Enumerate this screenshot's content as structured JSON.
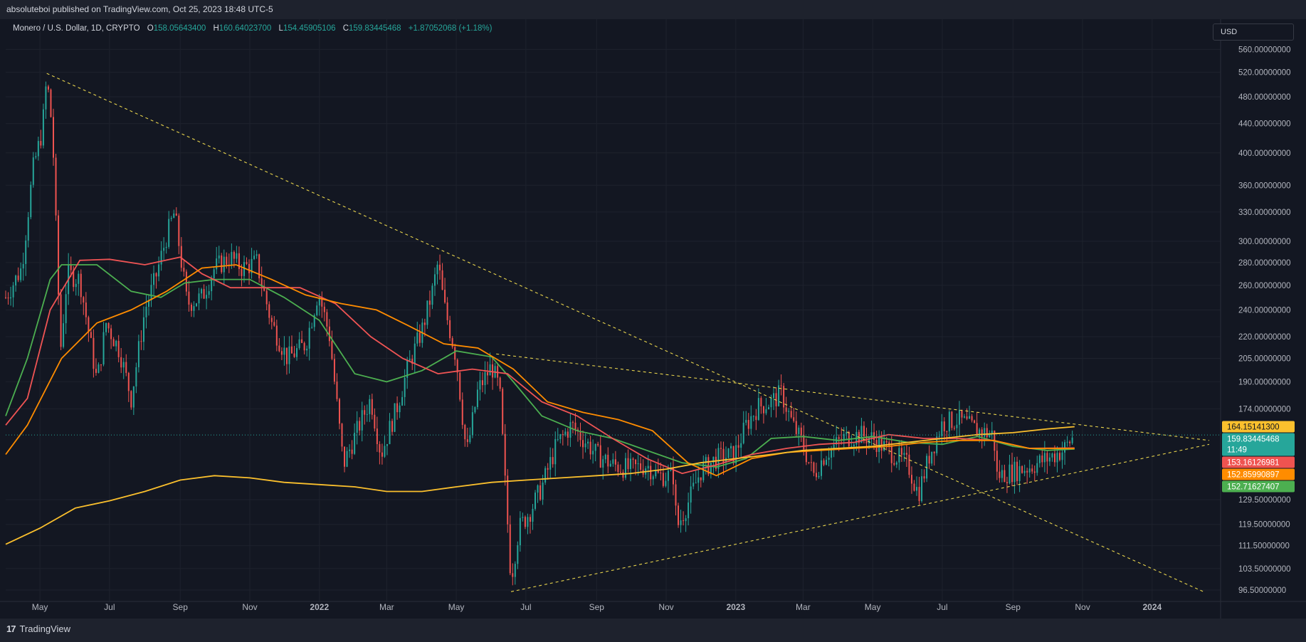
{
  "header": {
    "published": "absoluteboi published on TradingView.com, Oct 25, 2023 18:48 UTC-5"
  },
  "legend": {
    "symbol": "Monero / U.S. Dollar, 1D, CRYPTO",
    "open_label": "O",
    "open": "158.05643400",
    "high_label": "H",
    "high": "160.64023700",
    "low_label": "L",
    "low": "154.45905106",
    "close_label": "C",
    "close": "159.83445468",
    "change": "+1.87052068 (+1.18%)"
  },
  "currency_button": "USD",
  "footer": {
    "brand": "TradingView",
    "logo": "17"
  },
  "colors": {
    "background": "#131722",
    "grid": "#1e222d",
    "up": "#26a69a",
    "down": "#ef5350",
    "ma_green": "#4caf50",
    "ma_red": "#f05454",
    "ma_orange": "#ff8c00",
    "ma_yellow": "#fbc02d",
    "trendline": "#e8d44d"
  },
  "price_tags": [
    {
      "label": "164.15141300",
      "value": 164.15,
      "bg": "#fbc02d",
      "fg": "#131722"
    },
    {
      "label": "159.83445468",
      "sub": "11:49",
      "value": 159.83,
      "bg": "#26a69a",
      "fg": "#ffffff"
    },
    {
      "label": "153.16126981",
      "value": 153.16,
      "bg": "#ef5350",
      "fg": "#ffffff"
    },
    {
      "label": "152.85990897",
      "value": 152.86,
      "bg": "#ff8c00",
      "fg": "#ffffff"
    },
    {
      "label": "152.71627407",
      "value": 152.72,
      "bg": "#4caf50",
      "fg": "#ffffff"
    }
  ],
  "chart_data": {
    "type": "candlestick",
    "title": "Monero / U.S. Dollar, 1D, CRYPTO",
    "y_scale": "log",
    "ylim": [
      93,
      575
    ],
    "xlim": [
      "2021-04-01",
      "2024-03-01"
    ],
    "y_ticks": [
      {
        "value": 560,
        "label": "560.00000000"
      },
      {
        "value": 520,
        "label": "520.00000000"
      },
      {
        "value": 480,
        "label": "480.00000000"
      },
      {
        "value": 440,
        "label": "440.00000000"
      },
      {
        "value": 400,
        "label": "400.00000000"
      },
      {
        "value": 360,
        "label": "360.00000000"
      },
      {
        "value": 330,
        "label": "330.00000000"
      },
      {
        "value": 300,
        "label": "300.00000000"
      },
      {
        "value": 280,
        "label": "280.00000000"
      },
      {
        "value": 260,
        "label": "260.00000000"
      },
      {
        "value": 240,
        "label": "240.00000000"
      },
      {
        "value": 220,
        "label": "220.00000000"
      },
      {
        "value": 205,
        "label": "205.00000000"
      },
      {
        "value": 190,
        "label": "190.00000000"
      },
      {
        "value": 174,
        "label": "174.00000000"
      },
      {
        "value": 129.5,
        "label": "129.50000000"
      },
      {
        "value": 119.5,
        "label": "119.50000000"
      },
      {
        "value": 111.5,
        "label": "111.50000000"
      },
      {
        "value": 103.5,
        "label": "103.50000000"
      },
      {
        "value": 96.5,
        "label": "96.50000000"
      }
    ],
    "x_ticks": [
      {
        "date": "2021-05-01",
        "label": "May",
        "bold": false
      },
      {
        "date": "2021-07-01",
        "label": "Jul",
        "bold": false
      },
      {
        "date": "2021-09-01",
        "label": "Sep",
        "bold": false
      },
      {
        "date": "2021-11-01",
        "label": "Nov",
        "bold": false
      },
      {
        "date": "2022-01-01",
        "label": "2022",
        "bold": true
      },
      {
        "date": "2022-03-01",
        "label": "Mar",
        "bold": false
      },
      {
        "date": "2022-05-01",
        "label": "May",
        "bold": false
      },
      {
        "date": "2022-07-01",
        "label": "Jul",
        "bold": false
      },
      {
        "date": "2022-09-01",
        "label": "Sep",
        "bold": false
      },
      {
        "date": "2022-11-01",
        "label": "Nov",
        "bold": false
      },
      {
        "date": "2023-01-01",
        "label": "2023",
        "bold": true
      },
      {
        "date": "2023-03-01",
        "label": "Mar",
        "bold": false
      },
      {
        "date": "2023-05-01",
        "label": "May",
        "bold": false
      },
      {
        "date": "2023-07-01",
        "label": "Jul",
        "bold": false
      },
      {
        "date": "2023-09-01",
        "label": "Sep",
        "bold": false
      },
      {
        "date": "2023-11-01",
        "label": "Nov",
        "bold": false
      },
      {
        "date": "2024-01-01",
        "label": "2024",
        "bold": true
      }
    ],
    "price_path": [
      [
        "2021-04-01",
        250
      ],
      [
        "2021-04-15",
        275
      ],
      [
        "2021-04-25",
        380
      ],
      [
        "2021-05-03",
        430
      ],
      [
        "2021-05-07",
        510
      ],
      [
        "2021-05-12",
        430
      ],
      [
        "2021-05-19",
        210
      ],
      [
        "2021-05-25",
        270
      ],
      [
        "2021-06-05",
        265
      ],
      [
        "2021-06-20",
        190
      ],
      [
        "2021-06-28",
        230
      ],
      [
        "2021-07-10",
        210
      ],
      [
        "2021-07-20",
        180
      ],
      [
        "2021-08-01",
        240
      ],
      [
        "2021-08-10",
        265
      ],
      [
        "2021-08-20",
        305
      ],
      [
        "2021-08-27",
        330
      ],
      [
        "2021-09-07",
        245
      ],
      [
        "2021-09-20",
        250
      ],
      [
        "2021-10-01",
        275
      ],
      [
        "2021-10-15",
        285
      ],
      [
        "2021-10-25",
        275
      ],
      [
        "2021-11-07",
        280
      ],
      [
        "2021-11-20",
        230
      ],
      [
        "2021-12-04",
        205
      ],
      [
        "2021-12-20",
        215
      ],
      [
        "2021-12-31",
        255
      ],
      [
        "2022-01-10",
        220
      ],
      [
        "2022-01-22",
        145
      ],
      [
        "2022-02-05",
        165
      ],
      [
        "2022-02-15",
        180
      ],
      [
        "2022-02-24",
        150
      ],
      [
        "2022-03-10",
        175
      ],
      [
        "2022-03-20",
        200
      ],
      [
        "2022-04-01",
        225
      ],
      [
        "2022-04-10",
        255
      ],
      [
        "2022-04-15",
        280
      ],
      [
        "2022-04-20",
        245
      ],
      [
        "2022-05-01",
        205
      ],
      [
        "2022-05-10",
        150
      ],
      [
        "2022-05-20",
        185
      ],
      [
        "2022-06-01",
        200
      ],
      [
        "2022-06-08",
        185
      ],
      [
        "2022-06-13",
        135
      ],
      [
        "2022-06-18",
        100
      ],
      [
        "2022-06-25",
        118
      ],
      [
        "2022-07-05",
        125
      ],
      [
        "2022-07-15",
        135
      ],
      [
        "2022-07-28",
        155
      ],
      [
        "2022-08-10",
        165
      ],
      [
        "2022-08-20",
        158
      ],
      [
        "2022-09-01",
        150
      ],
      [
        "2022-09-15",
        145
      ],
      [
        "2022-10-01",
        143
      ],
      [
        "2022-10-15",
        145
      ],
      [
        "2022-10-25",
        140
      ],
      [
        "2022-11-08",
        140
      ],
      [
        "2022-11-10",
        118
      ],
      [
        "2022-11-20",
        128
      ],
      [
        "2022-12-01",
        142
      ],
      [
        "2022-12-15",
        148
      ],
      [
        "2022-12-31",
        150
      ],
      [
        "2023-01-10",
        165
      ],
      [
        "2023-01-20",
        175
      ],
      [
        "2023-02-01",
        178
      ],
      [
        "2023-02-10",
        183
      ],
      [
        "2023-02-20",
        165
      ],
      [
        "2023-03-01",
        155
      ],
      [
        "2023-03-10",
        140
      ],
      [
        "2023-03-20",
        150
      ],
      [
        "2023-04-05",
        158
      ],
      [
        "2023-04-20",
        160
      ],
      [
        "2023-05-01",
        158
      ],
      [
        "2023-05-15",
        152
      ],
      [
        "2023-06-01",
        145
      ],
      [
        "2023-06-10",
        132
      ],
      [
        "2023-06-20",
        150
      ],
      [
        "2023-07-01",
        166
      ],
      [
        "2023-07-15",
        168
      ],
      [
        "2023-08-01",
        162
      ],
      [
        "2023-08-15",
        160
      ],
      [
        "2023-08-18",
        140
      ],
      [
        "2023-09-01",
        142
      ],
      [
        "2023-09-15",
        144
      ],
      [
        "2023-10-01",
        148
      ],
      [
        "2023-10-15",
        152
      ],
      [
        "2023-10-25",
        159.8
      ]
    ],
    "moving_averages": [
      {
        "color": "#4caf50",
        "points": [
          [
            "2021-04-01",
            170
          ],
          [
            "2021-04-20",
            205
          ],
          [
            "2021-05-10",
            265
          ],
          [
            "2021-05-20",
            278
          ],
          [
            "2021-06-20",
            278
          ],
          [
            "2021-07-20",
            255
          ],
          [
            "2021-08-15",
            250
          ],
          [
            "2021-09-05",
            262
          ],
          [
            "2021-10-01",
            265
          ],
          [
            "2021-11-01",
            265
          ],
          [
            "2021-12-01",
            250
          ],
          [
            "2022-01-01",
            232
          ],
          [
            "2022-02-01",
            195
          ],
          [
            "2022-03-01",
            190
          ],
          [
            "2022-04-01",
            197
          ],
          [
            "2022-05-01",
            210
          ],
          [
            "2022-06-01",
            206
          ],
          [
            "2022-06-20",
            190
          ],
          [
            "2022-07-15",
            170
          ],
          [
            "2022-08-15",
            162
          ],
          [
            "2022-09-15",
            158
          ],
          [
            "2022-10-15",
            152
          ],
          [
            "2022-11-15",
            146
          ],
          [
            "2022-12-15",
            144
          ],
          [
            "2023-01-10",
            148
          ],
          [
            "2023-02-01",
            158
          ],
          [
            "2023-03-01",
            159
          ],
          [
            "2023-04-01",
            157
          ],
          [
            "2023-05-01",
            159
          ],
          [
            "2023-06-01",
            156
          ],
          [
            "2023-07-01",
            155
          ],
          [
            "2023-08-01",
            159
          ],
          [
            "2023-09-01",
            154
          ],
          [
            "2023-10-01",
            152
          ],
          [
            "2023-10-25",
            152.7
          ]
        ]
      },
      {
        "color": "#f05454",
        "points": [
          [
            "2021-04-01",
            165
          ],
          [
            "2021-04-20",
            180
          ],
          [
            "2021-05-10",
            240
          ],
          [
            "2021-06-05",
            282
          ],
          [
            "2021-07-01",
            283
          ],
          [
            "2021-08-01",
            278
          ],
          [
            "2021-09-01",
            285
          ],
          [
            "2021-09-20",
            270
          ],
          [
            "2021-10-15",
            258
          ],
          [
            "2021-11-15",
            258
          ],
          [
            "2021-12-15",
            258
          ],
          [
            "2022-01-15",
            245
          ],
          [
            "2022-02-15",
            220
          ],
          [
            "2022-03-15",
            205
          ],
          [
            "2022-04-15",
            195
          ],
          [
            "2022-05-15",
            198
          ],
          [
            "2022-06-15",
            195
          ],
          [
            "2022-07-15",
            178
          ],
          [
            "2022-08-15",
            170
          ],
          [
            "2022-09-15",
            158
          ],
          [
            "2022-10-15",
            148
          ],
          [
            "2022-11-15",
            141
          ],
          [
            "2022-12-15",
            145
          ],
          [
            "2023-01-15",
            150
          ],
          [
            "2023-02-15",
            153
          ],
          [
            "2023-03-15",
            155
          ],
          [
            "2023-04-15",
            156
          ],
          [
            "2023-05-15",
            160
          ],
          [
            "2023-06-15",
            158
          ],
          [
            "2023-07-15",
            158
          ],
          [
            "2023-08-15",
            157
          ],
          [
            "2023-09-15",
            153
          ],
          [
            "2023-10-25",
            153.2
          ]
        ]
      },
      {
        "color": "#ff8c00",
        "points": [
          [
            "2021-04-01",
            150
          ],
          [
            "2021-04-20",
            165
          ],
          [
            "2021-05-20",
            205
          ],
          [
            "2021-06-20",
            230
          ],
          [
            "2021-07-20",
            240
          ],
          [
            "2021-08-20",
            255
          ],
          [
            "2021-09-20",
            275
          ],
          [
            "2021-10-20",
            278
          ],
          [
            "2021-11-20",
            265
          ],
          [
            "2021-12-20",
            252
          ],
          [
            "2022-01-20",
            245
          ],
          [
            "2022-02-20",
            240
          ],
          [
            "2022-03-20",
            228
          ],
          [
            "2022-04-20",
            215
          ],
          [
            "2022-05-20",
            212
          ],
          [
            "2022-06-20",
            198
          ],
          [
            "2022-07-20",
            178
          ],
          [
            "2022-08-20",
            172
          ],
          [
            "2022-09-20",
            168
          ],
          [
            "2022-10-20",
            162
          ],
          [
            "2022-11-20",
            146
          ],
          [
            "2022-12-15",
            140
          ],
          [
            "2023-01-15",
            148
          ],
          [
            "2023-02-15",
            151
          ],
          [
            "2023-03-15",
            152
          ],
          [
            "2023-04-15",
            153
          ],
          [
            "2023-05-15",
            154
          ],
          [
            "2023-06-15",
            156
          ],
          [
            "2023-07-15",
            157
          ],
          [
            "2023-08-15",
            157
          ],
          [
            "2023-09-15",
            153
          ],
          [
            "2023-10-25",
            152.9
          ]
        ]
      },
      {
        "color": "#fbc02d",
        "points": [
          [
            "2021-04-01",
            112
          ],
          [
            "2021-05-01",
            118
          ],
          [
            "2021-06-01",
            126
          ],
          [
            "2021-07-01",
            129
          ],
          [
            "2021-08-01",
            133
          ],
          [
            "2021-09-01",
            138
          ],
          [
            "2021-10-01",
            140
          ],
          [
            "2021-11-01",
            139
          ],
          [
            "2021-12-01",
            137
          ],
          [
            "2022-01-01",
            136
          ],
          [
            "2022-02-01",
            135
          ],
          [
            "2022-03-01",
            133
          ],
          [
            "2022-04-01",
            133
          ],
          [
            "2022-05-01",
            135
          ],
          [
            "2022-06-01",
            137
          ],
          [
            "2022-07-01",
            138
          ],
          [
            "2022-08-01",
            139
          ],
          [
            "2022-09-01",
            140
          ],
          [
            "2022-10-01",
            141
          ],
          [
            "2022-11-01",
            143
          ],
          [
            "2022-12-01",
            146
          ],
          [
            "2023-01-01",
            148
          ],
          [
            "2023-02-01",
            150
          ],
          [
            "2023-03-01",
            152
          ],
          [
            "2023-04-01",
            153
          ],
          [
            "2023-05-01",
            154
          ],
          [
            "2023-06-01",
            156
          ],
          [
            "2023-07-01",
            158
          ],
          [
            "2023-08-01",
            160
          ],
          [
            "2023-09-01",
            161
          ],
          [
            "2023-10-01",
            163
          ],
          [
            "2023-10-25",
            164.15
          ]
        ]
      }
    ],
    "trendlines": [
      {
        "from": [
          "2021-05-07",
          518
        ],
        "to": [
          "2024-02-15",
          96
        ]
      },
      {
        "from": [
          "2022-06-05",
          208
        ],
        "to": [
          "2024-02-20",
          157
        ]
      },
      {
        "from": [
          "2022-06-18",
          96
        ],
        "to": [
          "2024-02-20",
          155
        ]
      }
    ]
  }
}
